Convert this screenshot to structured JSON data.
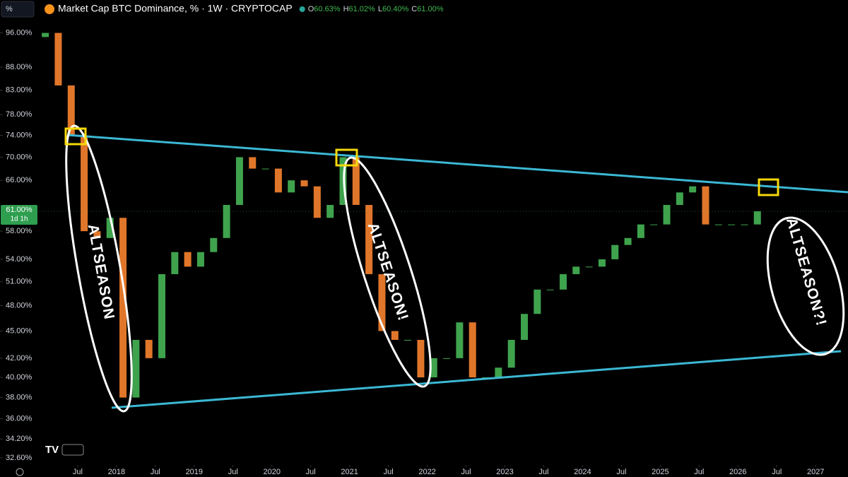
{
  "chart_data": {
    "type": "candlestick",
    "search": "%",
    "title": "Market Cap BTC Dominance, % · 1W · CRYPTOCAP",
    "ohlc": [
      {
        "key": "O",
        "text": "60.63%"
      },
      {
        "key": "H",
        "text": "61.02%"
      },
      {
        "key": "L",
        "text": "60.40%"
      },
      {
        "key": "C",
        "text": "61.00%"
      }
    ],
    "log_scale": true,
    "grid": false,
    "up_color": "#3fa34d",
    "down_color": "#e0762a",
    "xlim": [
      "2016-07",
      "2027-06"
    ],
    "ylim": [
      31.9,
      98.9
    ],
    "x": [
      "2017-02",
      "2017-04",
      "2017-06",
      "2017-08",
      "2017-10",
      "2017-12",
      "2018-02",
      "2018-04",
      "2018-06",
      "2018-08",
      "2018-10",
      "2018-12",
      "2019-02",
      "2019-04",
      "2019-06",
      "2019-08",
      "2019-10",
      "2019-12",
      "2020-02",
      "2020-04",
      "2020-06",
      "2020-08",
      "2020-10",
      "2020-12",
      "2021-02",
      "2021-04",
      "2021-06",
      "2021-08",
      "2021-10",
      "2021-12",
      "2022-02",
      "2022-04",
      "2022-06",
      "2022-08",
      "2022-10",
      "2022-12",
      "2023-02",
      "2023-04",
      "2023-06",
      "2023-08",
      "2023-10",
      "2023-12",
      "2024-02",
      "2024-04",
      "2024-06",
      "2024-08",
      "2024-10",
      "2024-12",
      "2025-02",
      "2025-04",
      "2025-06",
      "2025-08",
      "2025-10",
      "2025-12",
      "2026-02",
      "2026-04"
    ],
    "open": [
      95,
      96,
      84,
      74,
      58,
      57,
      60,
      38,
      44,
      42,
      52,
      55,
      53,
      55,
      57,
      62,
      70,
      68,
      68,
      64,
      66,
      65,
      60,
      62,
      70,
      62,
      52,
      45,
      44,
      44,
      40,
      42,
      42,
      46,
      40,
      40,
      41,
      44,
      47,
      50,
      50,
      52,
      53,
      53,
      54,
      56,
      57,
      59,
      59,
      62,
      64,
      65,
      59,
      59,
      59,
      59
    ],
    "close": [
      96,
      84,
      74,
      58,
      57,
      60,
      38,
      44,
      42,
      52,
      55,
      53,
      55,
      57,
      62,
      70,
      68,
      68,
      64,
      66,
      65,
      60,
      62,
      70,
      62,
      52,
      45,
      44,
      44,
      40,
      42,
      42,
      46,
      40,
      40,
      41,
      44,
      47,
      50,
      50,
      52,
      53,
      53,
      54,
      56,
      57,
      59,
      59,
      62,
      64,
      65,
      59,
      59,
      59,
      59,
      61
    ],
    "yticks": [
      {
        "value": 96,
        "label": "96.00%"
      },
      {
        "value": 88,
        "label": "88.00%"
      },
      {
        "value": 83,
        "label": "83.00%"
      },
      {
        "value": 78,
        "label": "78.00%"
      },
      {
        "value": 74,
        "label": "74.00%"
      },
      {
        "value": 70,
        "label": "70.00%"
      },
      {
        "value": 66,
        "label": "66.00%"
      },
      {
        "value": 58,
        "label": "58.00%"
      },
      {
        "value": 54,
        "label": "54.00%"
      },
      {
        "value": 51,
        "label": "51.00%"
      },
      {
        "value": 48,
        "label": "48.00%"
      },
      {
        "value": 45,
        "label": "45.00%"
      },
      {
        "value": 42,
        "label": "42.00%"
      },
      {
        "value": 40,
        "label": "40.00%"
      },
      {
        "value": 38,
        "label": "38.00%"
      },
      {
        "value": 36,
        "label": "36.00%"
      },
      {
        "value": 34.2,
        "label": "34.20%"
      },
      {
        "value": 32.6,
        "label": "32.60%"
      }
    ],
    "xticks": [
      {
        "value": "2017-07",
        "label": "Jul"
      },
      {
        "value": "2018-01",
        "label": "2018"
      },
      {
        "value": "2018-07",
        "label": "Jul"
      },
      {
        "value": "2019-01",
        "label": "2019"
      },
      {
        "value": "2019-07",
        "label": "Jul"
      },
      {
        "value": "2020-01",
        "label": "2020"
      },
      {
        "value": "2020-07",
        "label": "Jul"
      },
      {
        "value": "2021-01",
        "label": "2021"
      },
      {
        "value": "2021-07",
        "label": "Jul"
      },
      {
        "value": "2022-01",
        "label": "2022"
      },
      {
        "value": "2022-07",
        "label": "Jul"
      },
      {
        "value": "2023-01",
        "label": "2023"
      },
      {
        "value": "2023-07",
        "label": "Jul"
      },
      {
        "value": "2024-01",
        "label": "2024"
      },
      {
        "value": "2024-07",
        "label": "Jul"
      },
      {
        "value": "2025-01",
        "label": "2025"
      },
      {
        "value": "2025-07",
        "label": "Jul"
      },
      {
        "value": "2026-01",
        "label": "2026"
      },
      {
        "value": "2026-07",
        "label": "Jul"
      },
      {
        "value": "2027-01",
        "label": "2027"
      }
    ],
    "last_price": {
      "value": 61.0,
      "label": "61.00%",
      "countdown": "1d 1h"
    },
    "annotations": [
      "ALTSEASON",
      "ALTSEASON!",
      "ALTSEASON?!"
    ]
  }
}
